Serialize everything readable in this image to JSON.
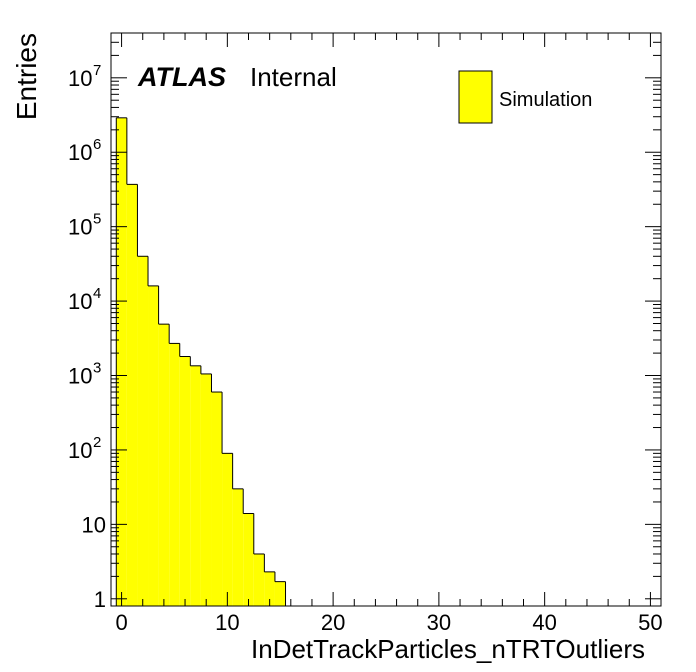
{
  "labels": {
    "atlas": "ATLAS",
    "internal": "Internal",
    "ylabel": "Entries",
    "xlabel": "InDetTrackParticles_nTRTOutliers"
  },
  "legend": {
    "entries": [
      {
        "label": "Simulation",
        "color": "#ffff00"
      }
    ]
  },
  "colors": {
    "fill": "#ffff00",
    "line": "#000000"
  },
  "chart_data": {
    "type": "bar",
    "title": "",
    "xlabel": "InDetTrackParticles_nTRTOutliers",
    "ylabel": "Entries",
    "xlim": [
      -1,
      51
    ],
    "ylim": [
      0.8,
      40000000
    ],
    "yscale": "log",
    "bin_width": 1,
    "grid": false,
    "legend_position": "top-right",
    "x_major_ticks": [
      0,
      10,
      20,
      30,
      40,
      50
    ],
    "x_tick_labels": [
      "0",
      "10",
      "20",
      "30",
      "40",
      "50"
    ],
    "y_tick_labels": [
      {
        "value": 1,
        "base": "1",
        "exp": ""
      },
      {
        "value": 10,
        "base": "10",
        "exp": ""
      },
      {
        "value": 100,
        "base": "10",
        "exp": "2"
      },
      {
        "value": 1000,
        "base": "10",
        "exp": "3"
      },
      {
        "value": 10000,
        "base": "10",
        "exp": "4"
      },
      {
        "value": 100000,
        "base": "10",
        "exp": "5"
      },
      {
        "value": 1000000,
        "base": "10",
        "exp": "6"
      },
      {
        "value": 10000000,
        "base": "10",
        "exp": "7"
      }
    ],
    "series": [
      {
        "name": "Simulation",
        "bins_low_edge": [
          -0.5,
          0.5,
          1.5,
          2.5,
          3.5,
          4.5,
          5.5,
          6.5,
          7.5,
          8.5,
          9.5,
          10.5,
          11.5,
          12.5,
          13.5,
          14.5,
          15.5
        ],
        "values": [
          2900000,
          370000,
          40000,
          16000,
          4900,
          2700,
          1800,
          1350,
          1050,
          600,
          90,
          30,
          14,
          4,
          2.3,
          1.7,
          0
        ]
      }
    ]
  }
}
